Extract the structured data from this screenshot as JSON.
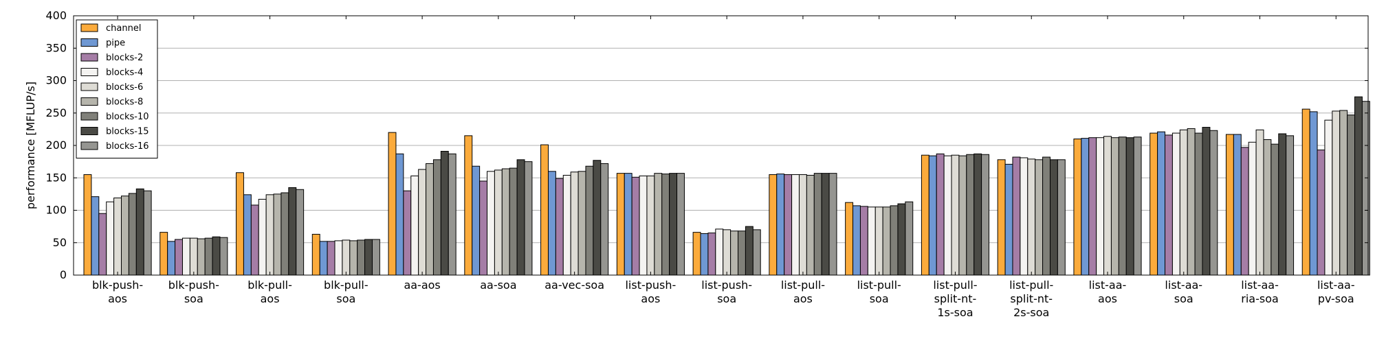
{
  "chart_data": {
    "type": "bar",
    "title": "",
    "ylabel": "performance [MFLUP/s]",
    "xlabel": "",
    "ylim": [
      0,
      400
    ],
    "yticks": [
      0,
      50,
      100,
      150,
      200,
      250,
      300,
      350,
      400
    ],
    "grid": "horizontal",
    "legend_position": "top-left",
    "categories": [
      [
        "blk-push-",
        "aos"
      ],
      [
        "blk-push-",
        "soa"
      ],
      [
        "blk-pull-",
        "aos"
      ],
      [
        "blk-pull-",
        "soa"
      ],
      [
        "aa-aos"
      ],
      [
        "aa-soa"
      ],
      [
        "aa-vec-soa"
      ],
      [
        "list-push-",
        "aos"
      ],
      [
        "list-push-",
        "soa"
      ],
      [
        "list-pull-",
        "aos"
      ],
      [
        "list-pull-",
        "soa"
      ],
      [
        "list-pull-",
        "split-nt-",
        "1s-soa"
      ],
      [
        "list-pull-",
        "split-nt-",
        "2s-soa"
      ],
      [
        "list-aa-",
        "aos"
      ],
      [
        "list-aa-",
        "soa"
      ],
      [
        "list-aa-",
        "ria-soa"
      ],
      [
        "list-aa-",
        "pv-soa"
      ]
    ],
    "series": [
      {
        "name": "channel",
        "color": "#fbab3c",
        "values": [
          155,
          66,
          158,
          63,
          220,
          215,
          201,
          157,
          66,
          155,
          112,
          185,
          178,
          210,
          219,
          217,
          256
        ]
      },
      {
        "name": "pipe",
        "color": "#6f98d3",
        "values": [
          121,
          52,
          124,
          52,
          187,
          168,
          160,
          157,
          64,
          156,
          107,
          184,
          171,
          211,
          221,
          217,
          252
        ]
      },
      {
        "name": "blocks-2",
        "color": "#a57da6",
        "values": [
          95,
          55,
          108,
          52,
          130,
          145,
          149,
          151,
          65,
          155,
          106,
          187,
          182,
          212,
          216,
          197,
          193
        ]
      },
      {
        "name": "blocks-4",
        "color": "#f4f3f1",
        "values": [
          113,
          57,
          117,
          53,
          153,
          160,
          154,
          153,
          71,
          155,
          105,
          184,
          181,
          212,
          219,
          205,
          239
        ]
      },
      {
        "name": "blocks-6",
        "color": "#dedcd5",
        "values": [
          119,
          57,
          124,
          54,
          163,
          162,
          159,
          153,
          70,
          155,
          105,
          185,
          179,
          214,
          224,
          224,
          253
        ]
      },
      {
        "name": "blocks-8",
        "color": "#b6b5ac",
        "values": [
          122,
          56,
          125,
          53,
          172,
          164,
          160,
          157,
          68,
          154,
          105,
          184,
          178,
          212,
          226,
          209,
          254
        ]
      },
      {
        "name": "blocks-10",
        "color": "#808079",
        "values": [
          126,
          57,
          127,
          54,
          178,
          165,
          168,
          156,
          68,
          157,
          107,
          186,
          182,
          213,
          219,
          202,
          247
        ]
      },
      {
        "name": "blocks-15",
        "color": "#4a4a45",
        "values": [
          133,
          59,
          135,
          55,
          191,
          178,
          177,
          157,
          75,
          157,
          110,
          187,
          178,
          212,
          228,
          218,
          275
        ]
      },
      {
        "name": "blocks-16",
        "color": "#959591",
        "values": [
          130,
          58,
          132,
          55,
          187,
          175,
          172,
          157,
          70,
          157,
          113,
          186,
          178,
          213,
          223,
          215,
          268
        ]
      }
    ]
  }
}
